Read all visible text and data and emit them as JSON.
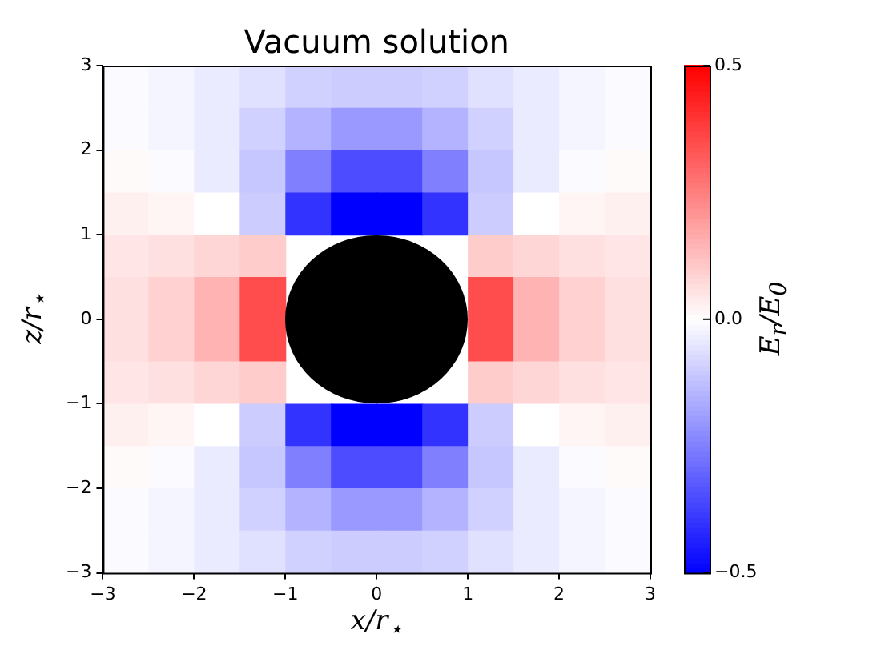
{
  "chart_data": {
    "type": "heatmap",
    "title": "Vacuum solution",
    "xlabel": "x/r$_{⋆}$",
    "ylabel": "z/r$_{⋆}$",
    "clabel": "E$_{r}$/E$_{0}$",
    "x": [
      -2.75,
      -2.25,
      -1.75,
      -1.25,
      -0.75,
      -0.25,
      0.25,
      0.75,
      1.25,
      1.75,
      2.25,
      2.75
    ],
    "y": [
      2.75,
      2.25,
      1.75,
      1.25,
      0.75,
      0.25,
      -0.25,
      -0.75,
      -1.25,
      -1.75,
      -2.25,
      -2.75
    ],
    "cells": [
      [
        -0.01,
        -0.02,
        -0.04,
        -0.06,
        -0.09,
        -0.1,
        -0.1,
        -0.09,
        -0.06,
        -0.04,
        -0.02,
        -0.01
      ],
      [
        -0.01,
        -0.02,
        -0.04,
        -0.09,
        -0.15,
        -0.2,
        -0.2,
        -0.15,
        -0.09,
        -0.04,
        -0.02,
        -0.01
      ],
      [
        0.01,
        -0.01,
        -0.04,
        -0.11,
        -0.25,
        -0.35,
        -0.35,
        -0.25,
        -0.11,
        -0.04,
        -0.01,
        0.01
      ],
      [
        0.03,
        0.02,
        0.0,
        -0.1,
        -0.4,
        -0.5,
        -0.5,
        -0.4,
        -0.1,
        0.0,
        0.02,
        0.03
      ],
      [
        0.05,
        0.06,
        0.08,
        0.1,
        null,
        null,
        null,
        null,
        0.1,
        0.08,
        0.06,
        0.05
      ],
      [
        0.06,
        0.09,
        0.15,
        0.35,
        null,
        null,
        null,
        null,
        0.35,
        0.15,
        0.09,
        0.06
      ],
      [
        0.06,
        0.09,
        0.15,
        0.35,
        null,
        null,
        null,
        null,
        0.35,
        0.15,
        0.09,
        0.06
      ],
      [
        0.05,
        0.06,
        0.08,
        0.1,
        null,
        null,
        null,
        null,
        0.1,
        0.08,
        0.06,
        0.05
      ],
      [
        0.03,
        0.02,
        0.0,
        -0.1,
        -0.4,
        -0.5,
        -0.5,
        -0.4,
        -0.1,
        0.0,
        0.02,
        0.03
      ],
      [
        0.01,
        -0.01,
        -0.04,
        -0.11,
        -0.25,
        -0.35,
        -0.35,
        -0.25,
        -0.11,
        -0.04,
        -0.01,
        0.01
      ],
      [
        -0.01,
        -0.02,
        -0.04,
        -0.09,
        -0.15,
        -0.2,
        -0.2,
        -0.15,
        -0.09,
        -0.04,
        -0.02,
        -0.01
      ],
      [
        -0.01,
        -0.02,
        -0.04,
        -0.06,
        -0.09,
        -0.1,
        -0.1,
        -0.09,
        -0.06,
        -0.04,
        -0.02,
        -0.01
      ]
    ],
    "clim": [
      -0.5,
      0.5
    ],
    "cticks": [
      {
        "value": -0.5,
        "label": "−0.5"
      },
      {
        "value": 0,
        "label": "0.0"
      },
      {
        "value": 0.5,
        "label": "0.5"
      }
    ],
    "xlim": [
      -3,
      3
    ],
    "xticks": [
      {
        "value": -3,
        "label": "−3"
      },
      {
        "value": -2,
        "label": "−2"
      },
      {
        "value": -1,
        "label": "−1"
      },
      0,
      1,
      2,
      3
    ],
    "ylim": [
      -3,
      3
    ],
    "yticks": [
      {
        "value": -3,
        "label": "−3"
      },
      {
        "value": -2,
        "label": "−2"
      },
      {
        "value": -1,
        "label": "−1"
      },
      0,
      1,
      2,
      3
    ],
    "grid": false,
    "legend": false
  }
}
